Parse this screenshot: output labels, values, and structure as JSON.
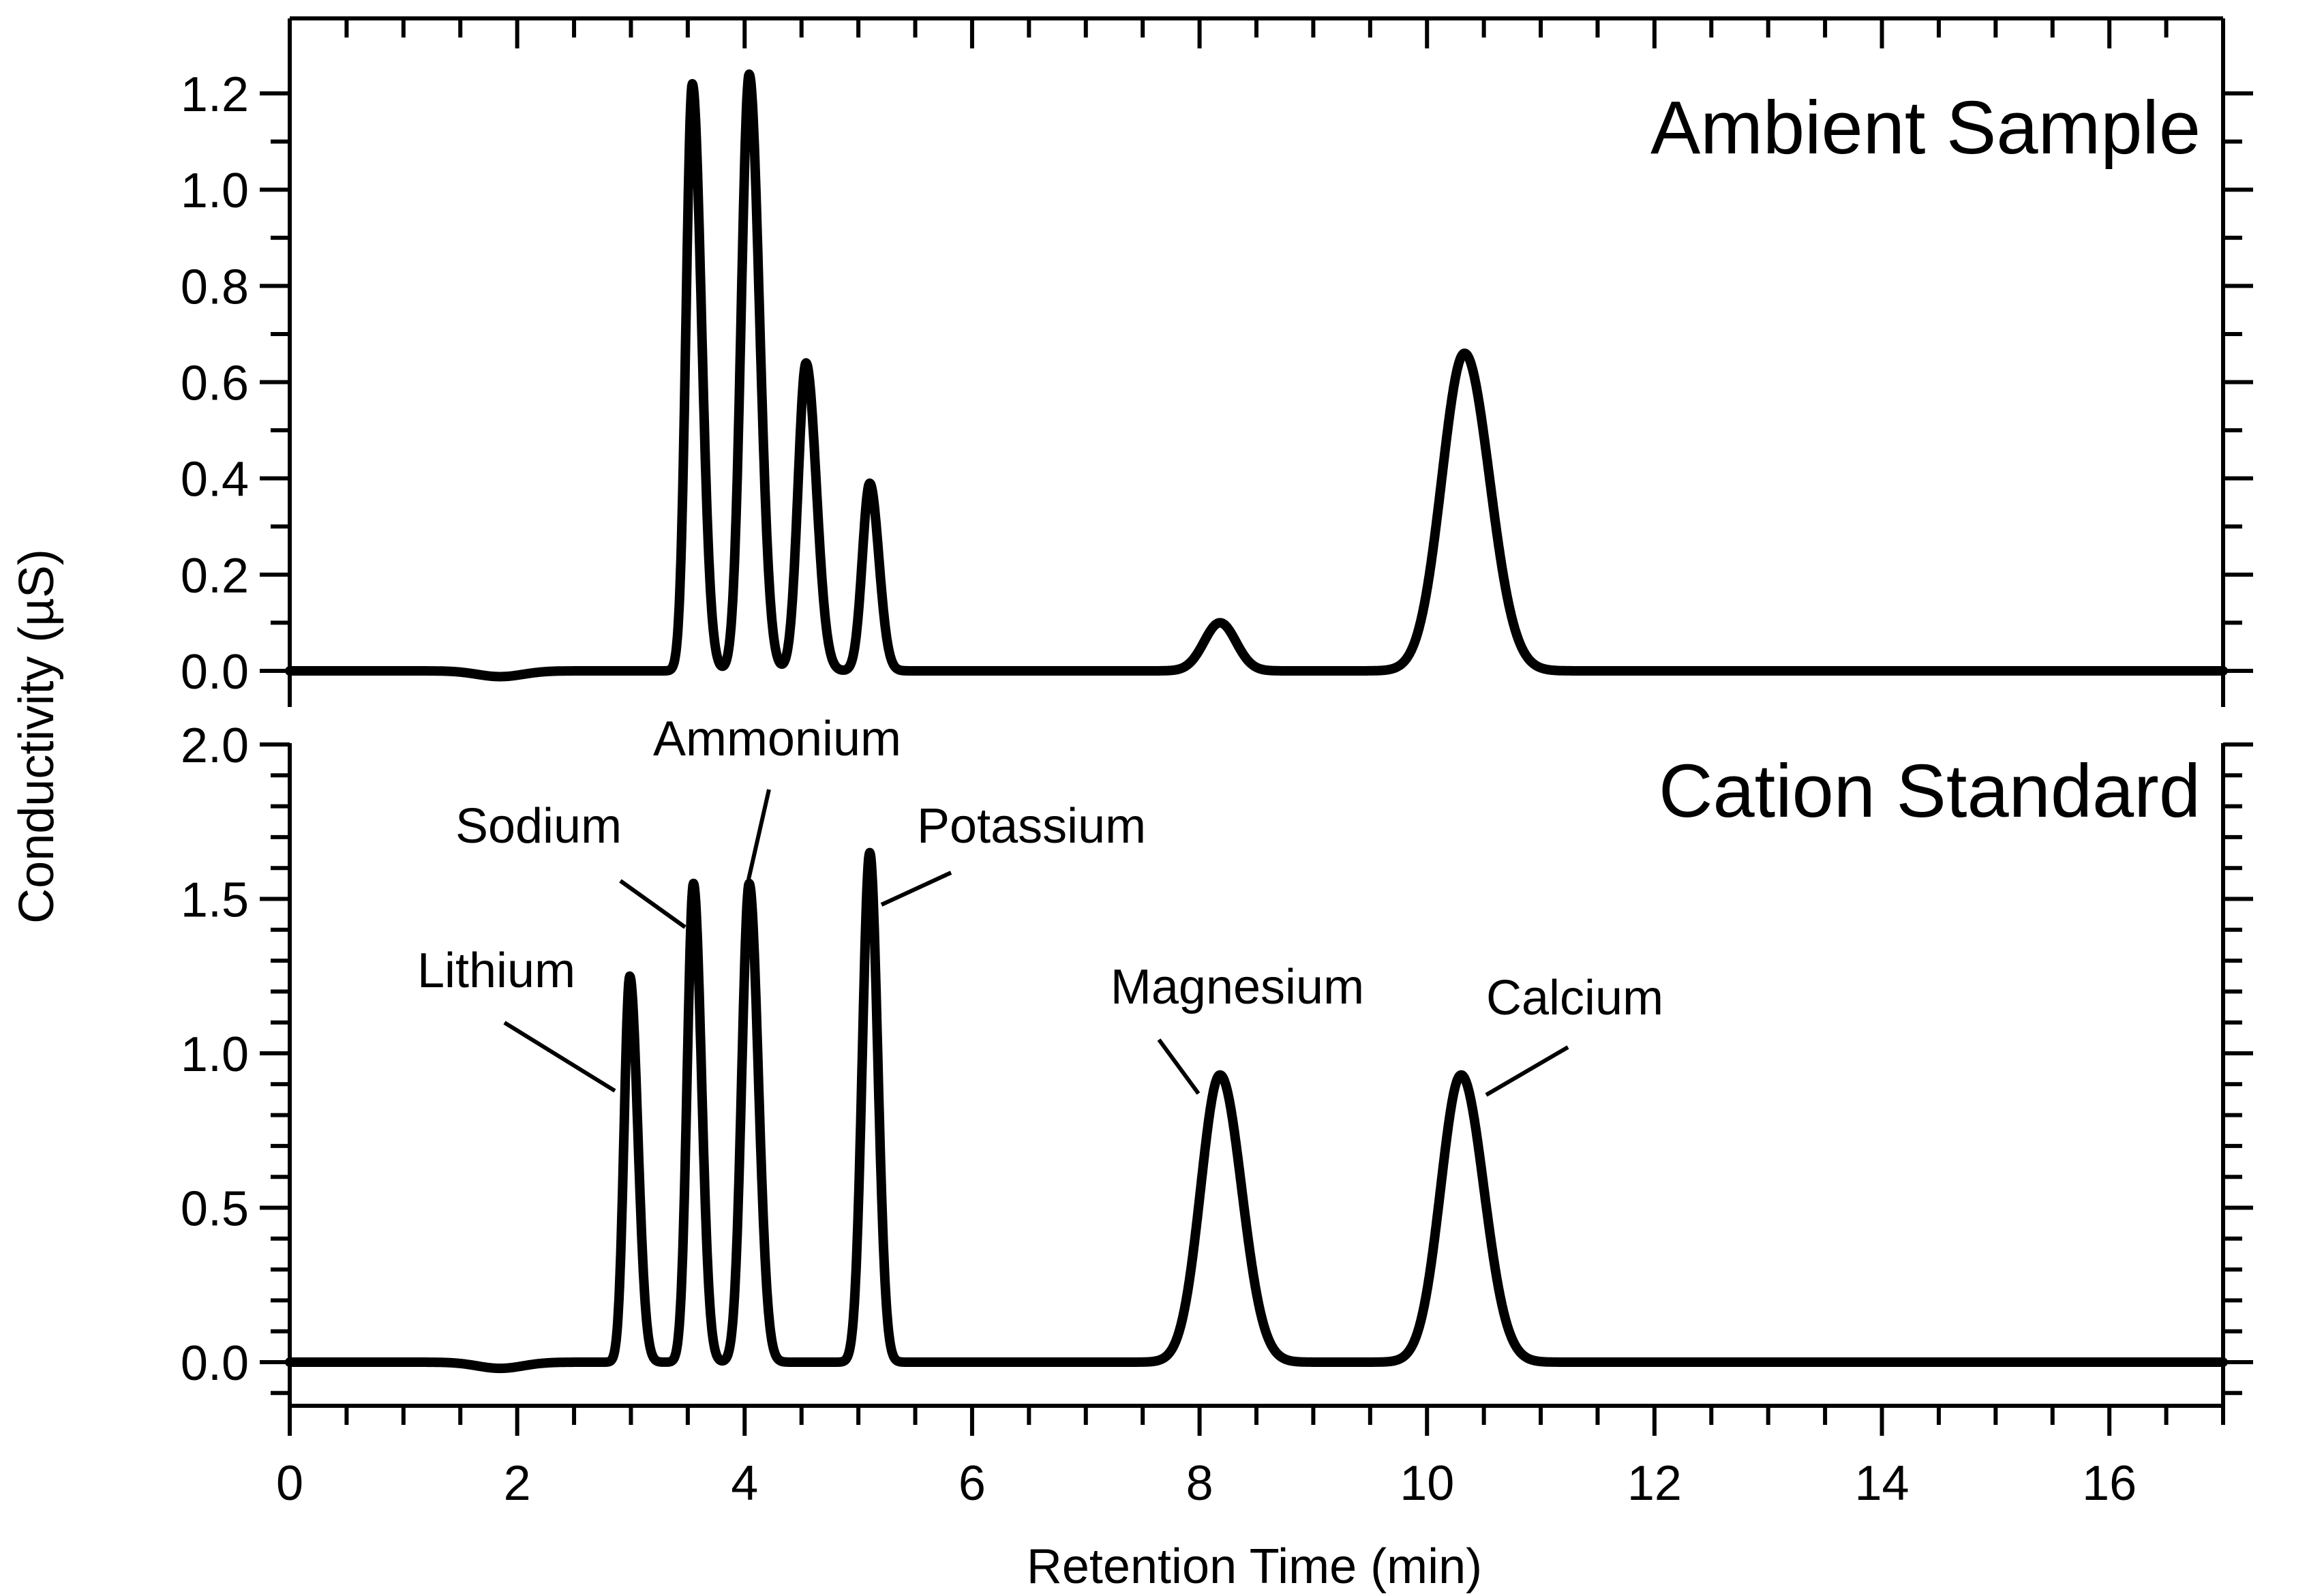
{
  "figure": {
    "ylabel": "Conductivity (µS)",
    "xlabel": "Retention Time (min)",
    "x_ticks": [
      "0",
      "2",
      "4",
      "6",
      "8",
      "10",
      "12",
      "14",
      "16"
    ]
  },
  "chart_data": [
    {
      "type": "line",
      "title": "Ambient Sample",
      "xlabel": "Retention Time (min)",
      "ylabel": "Conductivity (µS)",
      "xlim": [
        0,
        17
      ],
      "ylim": [
        -0.05,
        1.25
      ],
      "y_ticks": [
        "0.0",
        "0.2",
        "0.4",
        "0.6",
        "0.8",
        "1.0",
        "1.2"
      ],
      "grid": false,
      "baseline_dips": [
        {
          "center": 1.85,
          "depth": 0.012,
          "width": 0.2
        }
      ],
      "peaks": [
        {
          "retention_time": 3.54,
          "height": 1.22,
          "width": 0.055,
          "tail": 0.08
        },
        {
          "retention_time": 4.04,
          "height": 1.24,
          "width": 0.07,
          "tail": 0.09
        },
        {
          "retention_time": 4.54,
          "height": 0.64,
          "width": 0.07,
          "tail": 0.09
        },
        {
          "retention_time": 5.1,
          "height": 0.39,
          "width": 0.065,
          "tail": 0.08
        },
        {
          "retention_time": 8.18,
          "height": 0.1,
          "width": 0.14,
          "tail": 0.14
        },
        {
          "retention_time": 10.33,
          "height": 0.66,
          "width": 0.2,
          "tail": 0.22
        }
      ]
    },
    {
      "type": "line",
      "title": "Cation Standard",
      "xlabel": "Retention Time (min)",
      "ylabel": "Conductivity (µS)",
      "xlim": [
        0,
        17
      ],
      "ylim": [
        -0.1,
        2.0
      ],
      "y_ticks": [
        "0.0",
        "0.5",
        "1.0",
        "1.5",
        "2.0"
      ],
      "grid": false,
      "baseline_dips": [
        {
          "center": 1.85,
          "depth": 0.02,
          "width": 0.2
        }
      ],
      "peaks": [
        {
          "name": "Lithium",
          "retention_time": 2.99,
          "height": 1.25,
          "width": 0.05,
          "tail": 0.07
        },
        {
          "name": "Sodium",
          "retention_time": 3.55,
          "height": 1.55,
          "width": 0.055,
          "tail": 0.07
        },
        {
          "name": "Ammonium",
          "retention_time": 4.04,
          "height": 1.55,
          "width": 0.065,
          "tail": 0.08
        },
        {
          "name": "Potassium",
          "retention_time": 5.1,
          "height": 1.65,
          "width": 0.065,
          "tail": 0.07
        },
        {
          "name": "Magnesium",
          "retention_time": 8.18,
          "height": 0.93,
          "width": 0.17,
          "tail": 0.19
        },
        {
          "name": "Calcium",
          "retention_time": 10.3,
          "height": 0.93,
          "width": 0.18,
          "tail": 0.2
        }
      ]
    }
  ]
}
